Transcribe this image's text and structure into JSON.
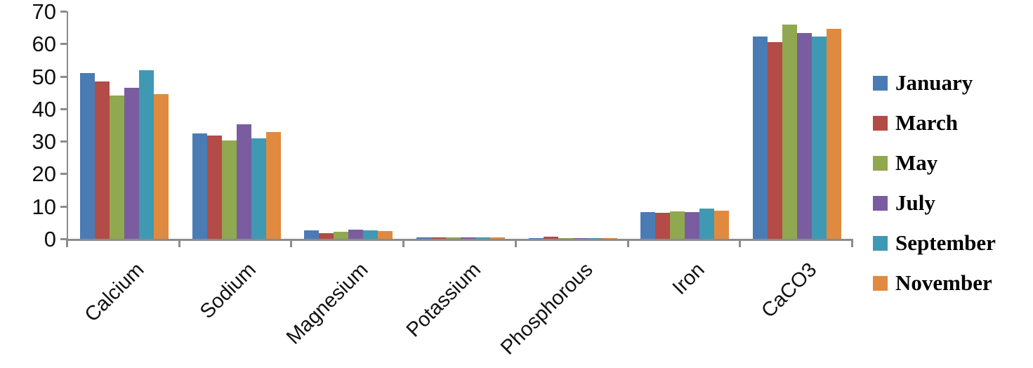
{
  "chart_data": {
    "type": "bar",
    "title": "",
    "xlabel": "",
    "ylabel": "",
    "ylim": [
      0,
      70
    ],
    "yticks": [
      70,
      60,
      50,
      40,
      30,
      20,
      10,
      0
    ],
    "grid": false,
    "legend_position": "right",
    "axis_color": "#8C8C8C",
    "text_color": "#111111",
    "categories": [
      "Calcium",
      "Sodium",
      "Magnesium",
      "Potassium",
      "Phosphorous",
      "Iron",
      "CaCO3"
    ],
    "series": [
      {
        "name": "January",
        "color": "#4A7CB3",
        "values": [
          51.0,
          32.5,
          2.5,
          0.5,
          0.3,
          8.2,
          62.3
        ]
      },
      {
        "name": "March",
        "color": "#B34B46",
        "values": [
          48.3,
          31.7,
          1.8,
          0.4,
          0.6,
          7.9,
          60.6
        ]
      },
      {
        "name": "May",
        "color": "#90A84F",
        "values": [
          44.0,
          30.3,
          2.1,
          0.5,
          0.3,
          8.5,
          65.9
        ]
      },
      {
        "name": "July",
        "color": "#7A5DA0",
        "values": [
          46.4,
          35.2,
          2.9,
          0.4,
          0.3,
          8.3,
          63.4
        ]
      },
      {
        "name": "September",
        "color": "#4099B3",
        "values": [
          51.9,
          31.0,
          2.7,
          0.4,
          0.3,
          9.2,
          62.2
        ]
      },
      {
        "name": "November",
        "color": "#E08A40",
        "values": [
          44.5,
          32.8,
          2.4,
          0.4,
          0.2,
          8.7,
          64.5
        ]
      }
    ]
  }
}
